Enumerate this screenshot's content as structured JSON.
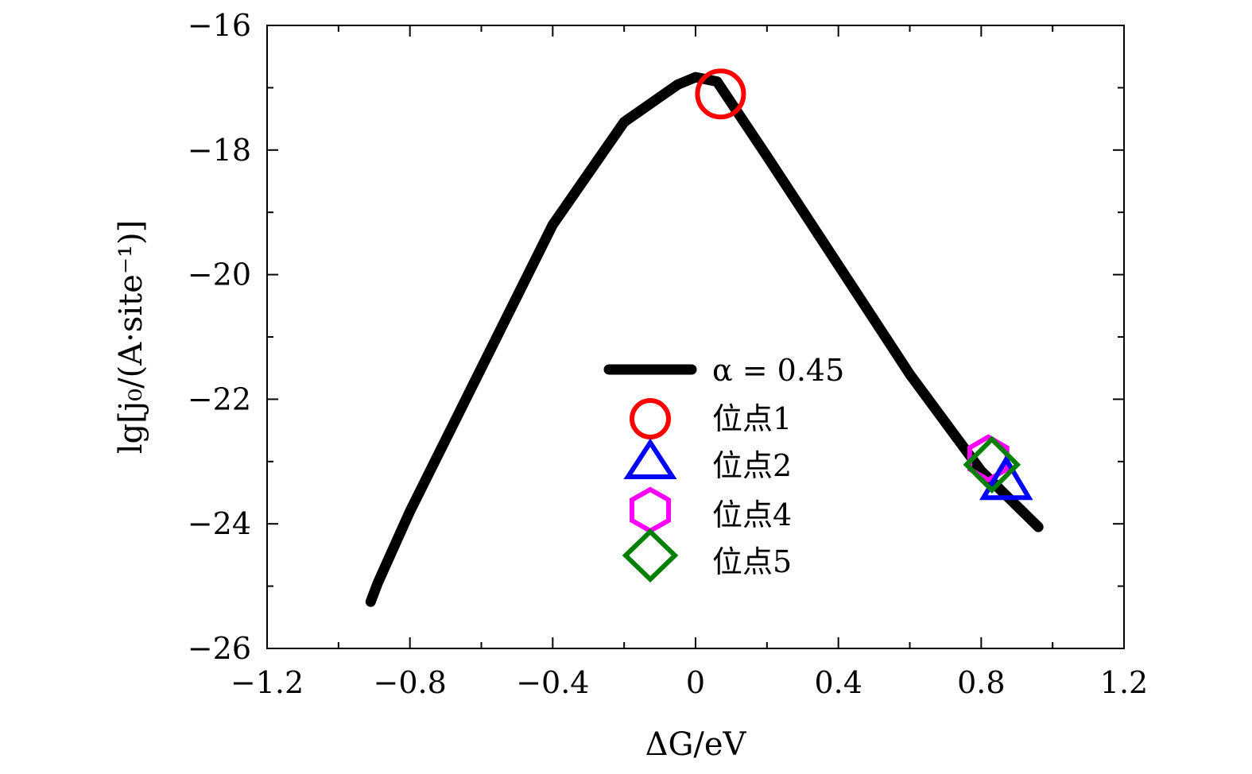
{
  "chart_data": {
    "type": "line",
    "title": "",
    "xlabel": "ΔG/eV",
    "ylabel": "lg[j₀/(A·site⁻¹)]",
    "xlim": [
      -1.2,
      1.2
    ],
    "ylim": [
      -26,
      -16
    ],
    "x_ticks": [
      -1.2,
      -0.8,
      -0.4,
      0,
      0.4,
      0.8,
      1.2
    ],
    "x_tick_labels": [
      "−1.2",
      "−0.8",
      "−0.4",
      "0",
      "0.4",
      "0.8",
      "1.2"
    ],
    "y_ticks": [
      -26,
      -24,
      -22,
      -20,
      -18,
      -16
    ],
    "y_tick_labels": [
      "−26",
      "−24",
      "−22",
      "−20",
      "−18",
      "−16"
    ],
    "grid": false,
    "legend_position": "center-right",
    "series": [
      {
        "name": "α = 0.45",
        "kind": "line",
        "color": "#000000",
        "x": [
          -0.91,
          -0.89,
          -0.8,
          -0.6,
          -0.4,
          -0.2,
          -0.05,
          0.0,
          0.06,
          0.2,
          0.4,
          0.6,
          0.8,
          0.96
        ],
        "y": [
          -25.25,
          -24.95,
          -23.8,
          -21.5,
          -19.2,
          -17.55,
          -16.95,
          -16.83,
          -16.9,
          -18.1,
          -19.85,
          -21.6,
          -23.15,
          -24.05
        ]
      },
      {
        "name": "位点1",
        "kind": "marker",
        "shape": "circle",
        "color": "#ff0000",
        "x": [
          0.07
        ],
        "y": [
          -17.1
        ]
      },
      {
        "name": "位点2",
        "kind": "marker",
        "shape": "triangle",
        "color": "#0000ff",
        "x": [
          0.87
        ],
        "y": [
          -23.35
        ]
      },
      {
        "name": "位点4",
        "kind": "marker",
        "shape": "hexagon",
        "color": "#ff00ff",
        "x": [
          0.82
        ],
        "y": [
          -22.95
        ]
      },
      {
        "name": "位点5",
        "kind": "marker",
        "shape": "diamond",
        "color": "#008000",
        "x": [
          0.83
        ],
        "y": [
          -23.05
        ]
      }
    ]
  }
}
